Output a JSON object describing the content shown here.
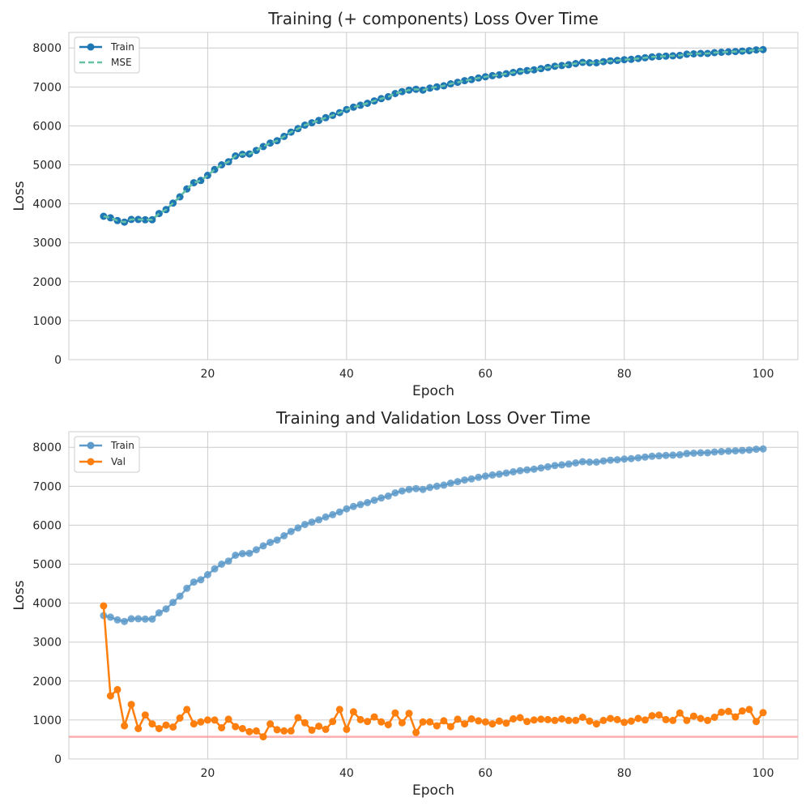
{
  "colors": {
    "train_blue": "#1f77b4",
    "train_blue_light": "#5d9ac9",
    "mse_teal": "#66c2a5",
    "val_orange": "#ff7f0e",
    "baseline_red": "#ff9999",
    "grid": "#cccccc",
    "spine": "#cccccc",
    "text": "#262626"
  },
  "chart_data": [
    {
      "type": "line",
      "title": "Training (+ components) Loss Over Time",
      "xlabel": "Epoch",
      "ylabel": "Loss",
      "xlim": [
        0,
        105
      ],
      "ylim": [
        0,
        8400
      ],
      "xticks": [
        20,
        40,
        60,
        80,
        100
      ],
      "yticks": [
        0,
        1000,
        2000,
        3000,
        4000,
        5000,
        6000,
        7000,
        8000
      ],
      "grid": true,
      "legend_position": "top-left",
      "x": [
        5,
        6,
        7,
        8,
        9,
        10,
        11,
        12,
        13,
        14,
        15,
        16,
        17,
        18,
        19,
        20,
        21,
        22,
        23,
        24,
        25,
        26,
        27,
        28,
        29,
        30,
        31,
        32,
        33,
        34,
        35,
        36,
        37,
        38,
        39,
        40,
        41,
        42,
        43,
        44,
        45,
        46,
        47,
        48,
        49,
        50,
        51,
        52,
        53,
        54,
        55,
        56,
        57,
        58,
        59,
        60,
        61,
        62,
        63,
        64,
        65,
        66,
        67,
        68,
        69,
        70,
        71,
        72,
        73,
        74,
        75,
        76,
        77,
        78,
        79,
        80,
        81,
        82,
        83,
        84,
        85,
        86,
        87,
        88,
        89,
        90,
        91,
        92,
        93,
        94,
        95,
        96,
        97,
        98,
        99,
        100
      ],
      "series": [
        {
          "name": "Train",
          "style": "line-markers",
          "values": [
            3680,
            3640,
            3570,
            3530,
            3600,
            3600,
            3590,
            3590,
            3750,
            3850,
            4020,
            4180,
            4380,
            4540,
            4600,
            4730,
            4880,
            5000,
            5080,
            5230,
            5270,
            5280,
            5370,
            5470,
            5560,
            5620,
            5730,
            5840,
            5930,
            6020,
            6080,
            6140,
            6210,
            6270,
            6340,
            6420,
            6480,
            6530,
            6580,
            6640,
            6700,
            6750,
            6830,
            6880,
            6920,
            6940,
            6920,
            6970,
            7000,
            7030,
            7080,
            7120,
            7160,
            7190,
            7230,
            7260,
            7290,
            7310,
            7340,
            7370,
            7400,
            7420,
            7440,
            7470,
            7500,
            7530,
            7550,
            7570,
            7600,
            7630,
            7620,
            7620,
            7650,
            7670,
            7680,
            7700,
            7710,
            7730,
            7750,
            7770,
            7780,
            7790,
            7800,
            7810,
            7840,
            7850,
            7860,
            7860,
            7880,
            7890,
            7900,
            7910,
            7920,
            7930,
            7950,
            7960
          ]
        },
        {
          "name": "MSE",
          "style": "dashed",
          "values": [
            3680,
            3640,
            3570,
            3530,
            3600,
            3600,
            3590,
            3590,
            3750,
            3850,
            4020,
            4180,
            4380,
            4540,
            4600,
            4730,
            4880,
            5000,
            5080,
            5230,
            5270,
            5280,
            5370,
            5470,
            5560,
            5620,
            5730,
            5840,
            5930,
            6020,
            6080,
            6140,
            6210,
            6270,
            6340,
            6420,
            6480,
            6530,
            6580,
            6640,
            6700,
            6750,
            6830,
            6880,
            6920,
            6940,
            6920,
            6970,
            7000,
            7030,
            7080,
            7120,
            7160,
            7190,
            7230,
            7260,
            7290,
            7310,
            7340,
            7370,
            7400,
            7420,
            7440,
            7470,
            7500,
            7530,
            7550,
            7570,
            7600,
            7630,
            7620,
            7620,
            7650,
            7670,
            7680,
            7700,
            7710,
            7730,
            7750,
            7770,
            7780,
            7790,
            7800,
            7810,
            7840,
            7850,
            7860,
            7860,
            7880,
            7890,
            7900,
            7910,
            7920,
            7930,
            7950,
            7960
          ]
        }
      ]
    },
    {
      "type": "line",
      "title": "Training and Validation Loss Over Time",
      "xlabel": "Epoch",
      "ylabel": "Loss",
      "xlim": [
        0,
        105
      ],
      "ylim": [
        0,
        8400
      ],
      "xticks": [
        20,
        40,
        60,
        80,
        100
      ],
      "yticks": [
        0,
        1000,
        2000,
        3000,
        4000,
        5000,
        6000,
        7000,
        8000
      ],
      "grid": true,
      "legend_position": "top-left",
      "hline": 570,
      "x": [
        5,
        6,
        7,
        8,
        9,
        10,
        11,
        12,
        13,
        14,
        15,
        16,
        17,
        18,
        19,
        20,
        21,
        22,
        23,
        24,
        25,
        26,
        27,
        28,
        29,
        30,
        31,
        32,
        33,
        34,
        35,
        36,
        37,
        38,
        39,
        40,
        41,
        42,
        43,
        44,
        45,
        46,
        47,
        48,
        49,
        50,
        51,
        52,
        53,
        54,
        55,
        56,
        57,
        58,
        59,
        60,
        61,
        62,
        63,
        64,
        65,
        66,
        67,
        68,
        69,
        70,
        71,
        72,
        73,
        74,
        75,
        76,
        77,
        78,
        79,
        80,
        81,
        82,
        83,
        84,
        85,
        86,
        87,
        88,
        89,
        90,
        91,
        92,
        93,
        94,
        95,
        96,
        97,
        98,
        99,
        100
      ],
      "series": [
        {
          "name": "Train",
          "style": "line-markers-light",
          "values": [
            3680,
            3640,
            3570,
            3530,
            3600,
            3600,
            3590,
            3590,
            3750,
            3850,
            4020,
            4180,
            4380,
            4540,
            4600,
            4730,
            4880,
            5000,
            5080,
            5230,
            5270,
            5280,
            5370,
            5470,
            5560,
            5620,
            5730,
            5840,
            5930,
            6020,
            6080,
            6140,
            6210,
            6270,
            6340,
            6420,
            6480,
            6530,
            6580,
            6640,
            6700,
            6750,
            6830,
            6880,
            6920,
            6940,
            6920,
            6970,
            7000,
            7030,
            7080,
            7120,
            7160,
            7190,
            7230,
            7260,
            7290,
            7310,
            7340,
            7370,
            7400,
            7420,
            7440,
            7470,
            7500,
            7530,
            7550,
            7570,
            7600,
            7630,
            7620,
            7620,
            7650,
            7670,
            7680,
            7700,
            7710,
            7730,
            7750,
            7770,
            7780,
            7790,
            7800,
            7810,
            7840,
            7850,
            7860,
            7860,
            7880,
            7890,
            7900,
            7910,
            7920,
            7930,
            7950,
            7960
          ]
        },
        {
          "name": "Val",
          "style": "line-markers",
          "values": [
            3930,
            1620,
            1780,
            850,
            1400,
            780,
            1130,
            900,
            780,
            870,
            820,
            1050,
            1270,
            900,
            950,
            1000,
            1000,
            800,
            1020,
            830,
            780,
            700,
            720,
            570,
            900,
            750,
            720,
            720,
            1060,
            930,
            740,
            840,
            760,
            960,
            1270,
            760,
            1210,
            1010,
            960,
            1080,
            950,
            880,
            1180,
            930,
            1170,
            680,
            950,
            950,
            850,
            980,
            830,
            1020,
            900,
            1030,
            980,
            950,
            900,
            970,
            920,
            1030,
            1060,
            960,
            1000,
            1020,
            1010,
            990,
            1030,
            990,
            990,
            1070,
            970,
            900,
            990,
            1040,
            1010,
            940,
            970,
            1040,
            1000,
            1110,
            1130,
            1010,
            990,
            1180,
            990,
            1100,
            1040,
            990,
            1070,
            1200,
            1220,
            1080,
            1230,
            1270,
            960,
            1190
          ]
        }
      ]
    }
  ]
}
